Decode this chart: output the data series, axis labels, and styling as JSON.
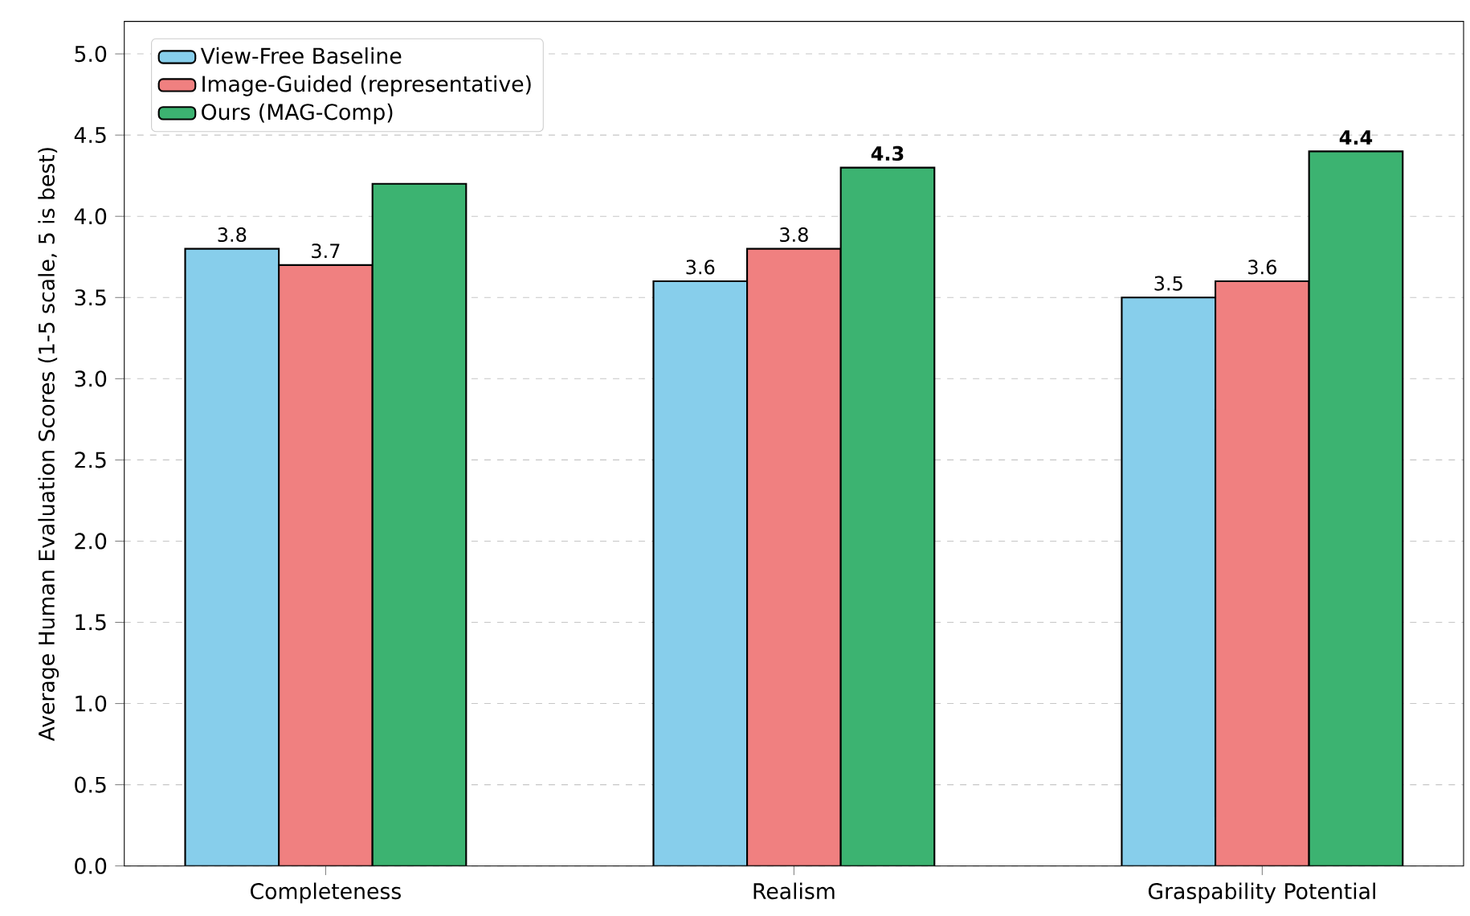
{
  "chart_data": {
    "type": "bar",
    "ylabel": "Average Human Evaluation Scores (1-5 scale, 5 is best)",
    "categories": [
      "Completeness",
      "Realism",
      "Graspability Potential"
    ],
    "series": [
      {
        "name": "View-Free Baseline",
        "color": "#87ceeb",
        "values": [
          3.8,
          3.6,
          3.5
        ],
        "value_labels": [
          "3.8",
          "3.6",
          "3.5"
        ]
      },
      {
        "name": "Image-Guided (representative)",
        "color": "#f08080",
        "values": [
          3.7,
          3.8,
          3.6
        ],
        "value_labels": [
          "3.7",
          "3.8",
          "3.6"
        ]
      },
      {
        "name": "Ours (MAG-Comp)",
        "color": "#3cb371",
        "values": [
          4.2,
          4.3,
          4.4
        ],
        "value_labels": [
          null,
          "**4.3**",
          "**4.4**"
        ]
      }
    ],
    "ylim": [
      0,
      5.2
    ],
    "yticks": [
      {
        "value": 0,
        "label": "0.0"
      },
      {
        "value": 0.5,
        "label": "0.5"
      },
      {
        "value": 1,
        "label": "1.0"
      },
      {
        "value": 1.5,
        "label": "1.5"
      },
      {
        "value": 2,
        "label": "2.0"
      },
      {
        "value": 2.5,
        "label": "2.5"
      },
      {
        "value": 3,
        "label": "3.0"
      },
      {
        "value": 3.5,
        "label": "3.5"
      },
      {
        "value": 4,
        "label": "4.0"
      },
      {
        "value": 4.5,
        "label": "4.5"
      },
      {
        "value": 5,
        "label": "5.0"
      }
    ],
    "grid": "y",
    "legend": "top left"
  }
}
